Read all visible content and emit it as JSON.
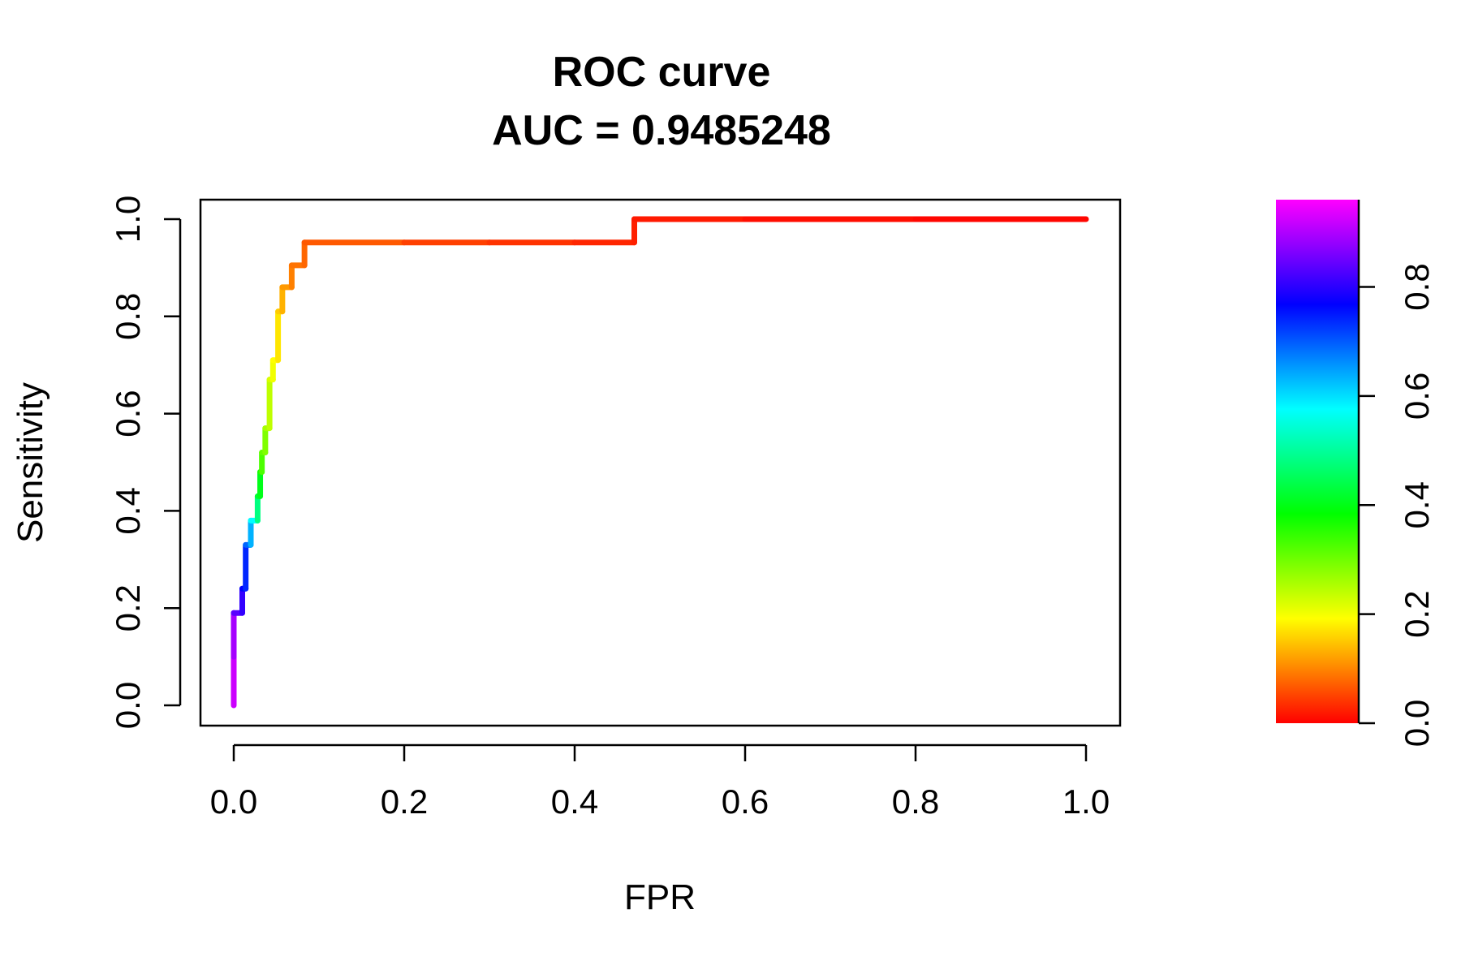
{
  "chart_data": {
    "type": "line",
    "title": "ROC curve",
    "subtitle": "AUC = 0.9485248",
    "xlabel": "FPR",
    "ylabel": "Sensitivity",
    "xlim": [
      0,
      1
    ],
    "ylim": [
      0,
      1
    ],
    "x_ticks": [
      "0.0",
      "0.2",
      "0.4",
      "0.6",
      "0.8",
      "1.0"
    ],
    "y_ticks": [
      "0.0",
      "0.2",
      "0.4",
      "0.6",
      "0.8",
      "1.0"
    ],
    "grid": false,
    "legend": "colorbar-right",
    "colorbar": {
      "ticks": [
        "0.0",
        "0.2",
        "0.4",
        "0.6",
        "0.8"
      ],
      "range": [
        0,
        0.96
      ],
      "colormap": "rainbow (red → yellow → green → cyan → blue → magenta)"
    },
    "series": [
      {
        "x": [
          0.0,
          0.0,
          0.0,
          0.0,
          0.01,
          0.01,
          0.014,
          0.014,
          0.02,
          0.02,
          0.028,
          0.028,
          0.031,
          0.031,
          0.033,
          0.033,
          0.037,
          0.037,
          0.042,
          0.042,
          0.046,
          0.046,
          0.052,
          0.052,
          0.057,
          0.057,
          0.068,
          0.068,
          0.083,
          0.083,
          0.2,
          0.3,
          0.4,
          0.47,
          0.47,
          0.6,
          0.8,
          1.0
        ],
        "y": [
          0.0,
          0.1,
          0.19,
          0.19,
          0.19,
          0.24,
          0.24,
          0.33,
          0.33,
          0.38,
          0.38,
          0.43,
          0.43,
          0.48,
          0.48,
          0.52,
          0.52,
          0.57,
          0.57,
          0.67,
          0.67,
          0.71,
          0.71,
          0.81,
          0.81,
          0.86,
          0.86,
          0.905,
          0.905,
          0.952,
          0.952,
          0.952,
          0.952,
          0.952,
          1.0,
          1.0,
          1.0,
          1.0
        ],
        "c": [
          0.96,
          0.93,
          0.9,
          0.87,
          0.84,
          0.8,
          0.77,
          0.72,
          0.66,
          0.6,
          0.5,
          0.44,
          0.42,
          0.38,
          0.34,
          0.32,
          0.3,
          0.27,
          0.25,
          0.23,
          0.21,
          0.2,
          0.18,
          0.16,
          0.14,
          0.12,
          0.1,
          0.09,
          0.08,
          0.07,
          0.05,
          0.04,
          0.03,
          0.025,
          0.02,
          0.01,
          0.005,
          0.0
        ]
      }
    ]
  }
}
